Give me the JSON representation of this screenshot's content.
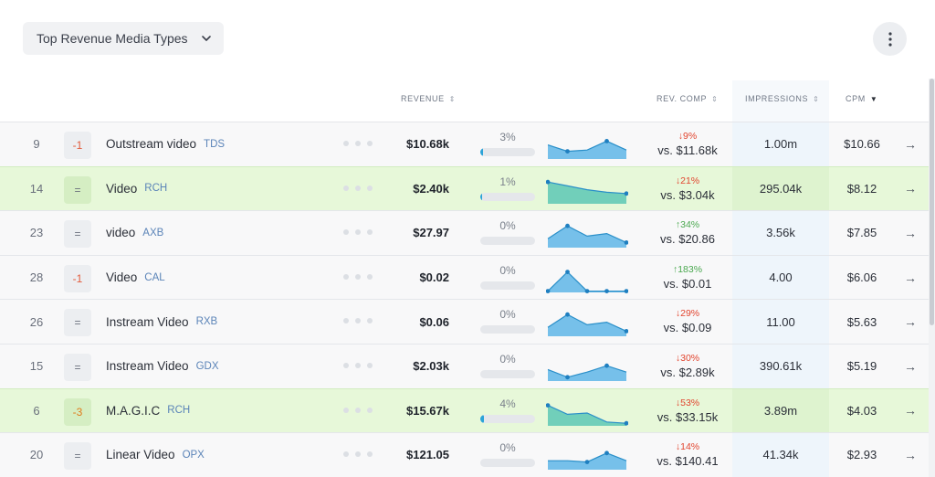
{
  "toolbar": {
    "dropdown_label": "Top Revenue Media Types",
    "more_icon": "vertical-ellipsis-icon",
    "chevron_icon": "chevron-down-icon"
  },
  "columns": {
    "revenue": "REVENUE",
    "rev_comp": "REV. COMP",
    "impressions": "IMPRESSIONS",
    "cpm": "CPM",
    "sort_icon": "sort-icon",
    "active_sort": "cpm-desc"
  },
  "colors": {
    "highlight_row": "#e7f8d9",
    "spark_blue": "#5fb6e8",
    "spark_green": "#5cc8b4",
    "down": "#e2452f",
    "up": "#4aa84f"
  },
  "rows": [
    {
      "rank": "9",
      "delta": "-1",
      "name": "Outstream video",
      "code": "TDS",
      "revenue": "$10.68k",
      "share_pct": "3%",
      "share": 0.03,
      "spark": [
        0.55,
        0.3,
        0.35,
        0.7,
        0.35
      ],
      "spark_points": [
        1,
        3
      ],
      "change": "↓9%",
      "change_dir": "down",
      "compare": "vs. $11.68k",
      "impressions": "1.00m",
      "cpm": "$10.66",
      "highlight": false
    },
    {
      "rank": "14",
      "delta": "=",
      "name": "Video",
      "code": "RCH",
      "revenue": "$2.40k",
      "share_pct": "1%",
      "share": 0.01,
      "spark": [
        0.85,
        0.7,
        0.55,
        0.45,
        0.4
      ],
      "spark_points": [
        0,
        4
      ],
      "change": "↓21%",
      "change_dir": "down",
      "compare": "vs. $3.04k",
      "impressions": "295.04k",
      "cpm": "$8.12",
      "highlight": true
    },
    {
      "rank": "23",
      "delta": "=",
      "name": "video",
      "code": "AXB",
      "revenue": "$27.97",
      "share_pct": "0%",
      "share": 0.0,
      "spark": [
        0.35,
        0.85,
        0.45,
        0.55,
        0.2
      ],
      "spark_points": [
        1,
        4
      ],
      "change": "↑34%",
      "change_dir": "up",
      "compare": "vs. $20.86",
      "impressions": "3.56k",
      "cpm": "$7.85",
      "highlight": false
    },
    {
      "rank": "28",
      "delta": "-1",
      "name": "Video",
      "code": "CAL",
      "revenue": "$0.02",
      "share_pct": "0%",
      "share": 0.0,
      "spark": [
        0.05,
        0.8,
        0.05,
        0.05,
        0.05
      ],
      "spark_points": [
        0,
        1,
        2,
        3,
        4
      ],
      "change": "↑183%",
      "change_dir": "up",
      "compare": "vs. $0.01",
      "impressions": "4.00",
      "cpm": "$6.06",
      "highlight": false
    },
    {
      "rank": "26",
      "delta": "=",
      "name": "Instream Video",
      "code": "RXB",
      "revenue": "$0.06",
      "share_pct": "0%",
      "share": 0.0,
      "spark": [
        0.35,
        0.85,
        0.45,
        0.55,
        0.2
      ],
      "spark_points": [
        1,
        4
      ],
      "change": "↓29%",
      "change_dir": "down",
      "compare": "vs. $0.09",
      "impressions": "11.00",
      "cpm": "$5.63",
      "highlight": false
    },
    {
      "rank": "15",
      "delta": "=",
      "name": "Instream Video",
      "code": "GDX",
      "revenue": "$2.03k",
      "share_pct": "0%",
      "share": 0.0,
      "spark": [
        0.45,
        0.15,
        0.35,
        0.6,
        0.35
      ],
      "spark_points": [
        1,
        3
      ],
      "change": "↓30%",
      "change_dir": "down",
      "compare": "vs. $2.89k",
      "impressions": "390.61k",
      "cpm": "$5.19",
      "highlight": false
    },
    {
      "rank": "6",
      "delta": "-3",
      "name": "M.A.G.I.C",
      "code": "RCH",
      "revenue": "$15.67k",
      "share_pct": "4%",
      "share": 0.04,
      "spark": [
        0.8,
        0.45,
        0.5,
        0.15,
        0.1
      ],
      "spark_points": [
        0,
        4
      ],
      "change": "↓53%",
      "change_dir": "down",
      "compare": "vs. $33.15k",
      "impressions": "3.89m",
      "cpm": "$4.03",
      "highlight": true
    },
    {
      "rank": "20",
      "delta": "=",
      "name": "Linear Video",
      "code": "OPX",
      "revenue": "$121.05",
      "share_pct": "0%",
      "share": 0.0,
      "spark": [
        0.35,
        0.35,
        0.3,
        0.65,
        0.35
      ],
      "spark_points": [
        2,
        3
      ],
      "change": "↓14%",
      "change_dir": "down",
      "compare": "vs. $140.41",
      "impressions": "41.34k",
      "cpm": "$2.93",
      "highlight": false
    }
  ],
  "row_arrow": "→",
  "row_arrow_icon": "arrow-right-icon",
  "more_dots_icon": "horizontal-ellipsis-icon"
}
